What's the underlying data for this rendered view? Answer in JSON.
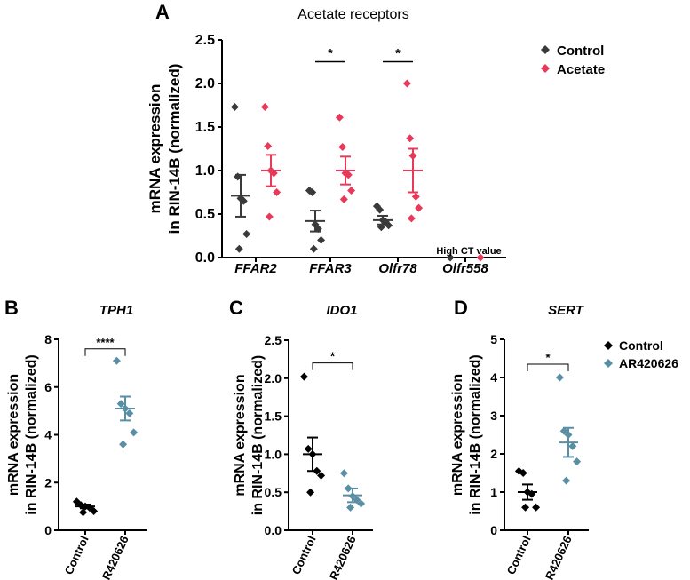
{
  "colors": {
    "control_a": "#3a3a3a",
    "acetate": "#e8395a",
    "control_bcd": "#000000",
    "ar420626": "#5a8fa3",
    "axis": "#000000"
  },
  "panel_a": {
    "letter": "A",
    "title": "Acetate receptors",
    "legend": [
      "Control",
      "Acetate"
    ],
    "annotation": "High CT value"
  },
  "panel_b": {
    "letter": "B",
    "gene": "TPH1"
  },
  "panel_c": {
    "letter": "C",
    "gene": "IDO1"
  },
  "panel_d": {
    "letter": "D",
    "gene": "SERT",
    "legend": [
      "Control",
      "AR420626"
    ]
  },
  "chart_data": [
    {
      "id": "A",
      "type": "scatter",
      "title": "Acetate receptors",
      "ylabel": [
        "mRNA expression",
        "in RIN-14B (normalized)"
      ],
      "ylim": [
        0,
        2.5
      ],
      "yticks": [
        "0.0",
        "0.5",
        "1.0",
        "1.5",
        "2.0",
        "2.5"
      ],
      "categories": [
        "FFAR2",
        "FFAR3",
        "Olfr78",
        "Olfr558"
      ],
      "series": [
        {
          "name": "Control",
          "points": [
            [
              1.73,
              0.93,
              0.68,
              0.65,
              0.27,
              0.1
            ],
            [
              0.77,
              0.75,
              0.38,
              0.33,
              0.2,
              0.1
            ],
            [
              0.59,
              0.55,
              0.43,
              0.41,
              0.37,
              0.35
            ],
            [
              0.0
            ]
          ],
          "mean": [
            0.71,
            0.42,
            0.43,
            null
          ],
          "sem": [
            0.24,
            0.12,
            0.05,
            null
          ]
        },
        {
          "name": "Acetate",
          "points": [
            [
              1.73,
              1.28,
              1.0,
              0.97,
              0.75,
              0.47
            ],
            [
              1.61,
              1.27,
              0.97,
              0.95,
              0.77,
              0.67
            ],
            [
              2.0,
              1.37,
              1.17,
              0.7,
              0.57,
              0.45
            ],
            [
              0.0
            ]
          ],
          "mean": [
            1.0,
            1.0,
            1.0,
            null
          ],
          "sem": [
            0.18,
            0.16,
            0.25,
            null
          ]
        }
      ],
      "significance": [
        {
          "category": "FFAR3",
          "label": "*",
          "y": 2.25
        },
        {
          "category": "Olfr78",
          "label": "*",
          "y": 2.25
        }
      ]
    },
    {
      "id": "B",
      "type": "scatter",
      "title": "TPH1",
      "ylabel": [
        "mRNA expression",
        "in RIN-14B (normalized)"
      ],
      "ylim": [
        0,
        8
      ],
      "yticks": [
        "0",
        "2",
        "4",
        "6",
        "8"
      ],
      "categories": [
        "Control",
        "AR420626"
      ],
      "groups": [
        {
          "name": "Control",
          "points": [
            1.2,
            1.05,
            1.0,
            0.95,
            0.8,
            0.75
          ],
          "mean": 1.0,
          "sem": 0.08
        },
        {
          "name": "AR420626",
          "points": [
            7.1,
            5.3,
            5.1,
            4.9,
            4.1,
            3.6
          ],
          "mean": 5.1,
          "sem": 0.5
        }
      ],
      "significance": {
        "label": "****",
        "y": 7.6
      }
    },
    {
      "id": "C",
      "type": "scatter",
      "title": "IDO1",
      "ylabel": [
        "mRNA expression",
        "in RIN-14B (normalized)"
      ],
      "ylim": [
        0,
        2.5
      ],
      "yticks": [
        "0.0",
        "0.5",
        "1.0",
        "1.5",
        "2.0",
        "2.5"
      ],
      "categories": [
        "Control",
        "AR420626"
      ],
      "groups": [
        {
          "name": "Control",
          "points": [
            2.02,
            1.07,
            1.0,
            0.78,
            0.72,
            0.5
          ],
          "mean": 1.0,
          "sem": 0.22
        },
        {
          "name": "AR420626",
          "points": [
            0.75,
            0.55,
            0.45,
            0.4,
            0.35,
            0.3
          ],
          "mean": 0.46,
          "sem": 0.09
        }
      ],
      "significance": {
        "label": "*",
        "y": 2.2
      }
    },
    {
      "id": "D",
      "type": "scatter",
      "title": "SERT",
      "ylabel": [
        "mRNA expression",
        "in RIN-14B (normalized)"
      ],
      "ylim": [
        0,
        5
      ],
      "yticks": [
        "0",
        "1",
        "2",
        "3",
        "4",
        "5"
      ],
      "categories": [
        "Control",
        "AR420626"
      ],
      "groups": [
        {
          "name": "Control",
          "points": [
            1.55,
            1.5,
            1.0,
            0.95,
            0.6,
            0.6
          ],
          "mean": 1.0,
          "sem": 0.2
        },
        {
          "name": "AR420626",
          "points": [
            4.0,
            2.6,
            2.5,
            2.2,
            1.8,
            1.3
          ],
          "mean": 2.3,
          "sem": 0.38
        }
      ],
      "significance": {
        "label": "*",
        "y": 4.35
      }
    }
  ]
}
